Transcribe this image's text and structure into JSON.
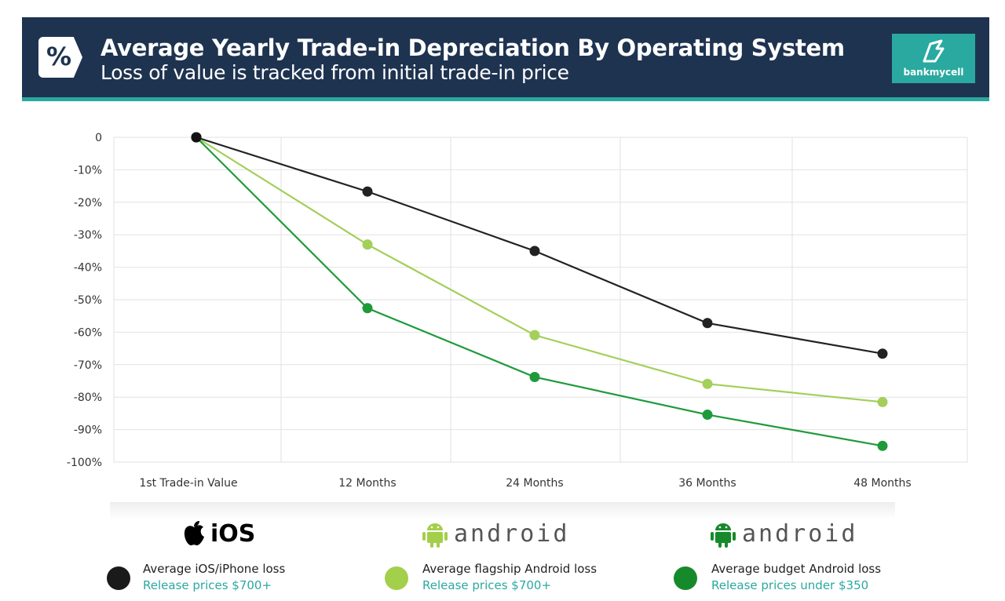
{
  "header": {
    "badge": "%",
    "title": "Average Yearly Trade-in Depreciation By Operating System",
    "subtitle": "Loss of value is tracked from initial trade-in price",
    "logo_text": "bankmycell"
  },
  "chart_data": {
    "type": "line",
    "title": "Average Yearly Trade-in Depreciation By Operating System",
    "subtitle": "Loss of value is tracked from initial trade-in price",
    "categories": [
      "1st Trade-in Value",
      "12 Months",
      "24 Months",
      "36 Months",
      "48 Months"
    ],
    "y_ticks": [
      "0",
      "-10%",
      "-20%",
      "-30%",
      "-40%",
      "-50%",
      "-60%",
      "-70%",
      "-80%",
      "-90%",
      "-100%"
    ],
    "ylim": [
      -100,
      0
    ],
    "grid": true,
    "series": [
      {
        "name": "Average iOS/iPhone loss",
        "color": "#222222",
        "values": [
          0,
          -16.7,
          -35.0,
          -57.2,
          -66.6
        ]
      },
      {
        "name": "Average flagship Android loss",
        "color": "#a3cf5a",
        "values": [
          0,
          -33.0,
          -60.9,
          -75.9,
          -81.5
        ]
      },
      {
        "name": "Average budget Android loss",
        "color": "#1f9a3a",
        "values": [
          0,
          -52.6,
          -73.8,
          -85.4,
          -95.0
        ]
      }
    ]
  },
  "brands": {
    "ios": "iOS",
    "android_1": "android",
    "android_2": "android"
  },
  "legend": [
    {
      "label": "Average iOS/iPhone loss",
      "sub": "Release prices $700+",
      "color": "#1a1a1a"
    },
    {
      "label": "Average flagship Android loss",
      "sub": "Release prices $700+",
      "color": "#a3cf4a"
    },
    {
      "label": "Average budget Android loss",
      "sub": "Release prices under $350",
      "color": "#168a2b"
    }
  ]
}
